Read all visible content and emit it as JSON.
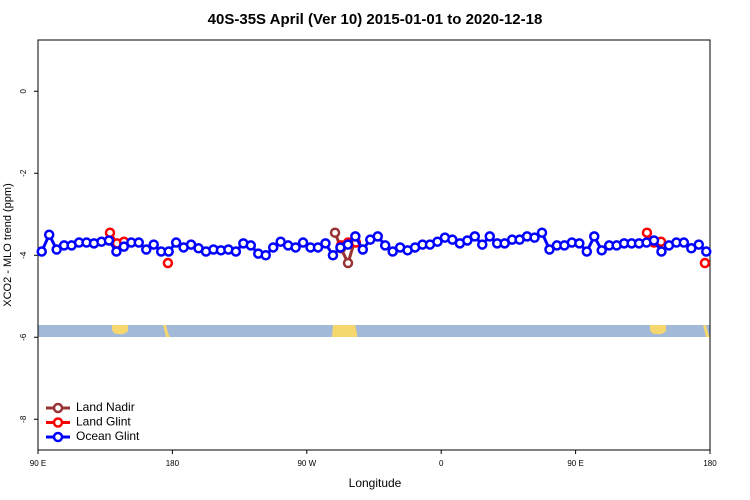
{
  "chart_data": {
    "type": "line",
    "title": "40S-35S April (Ver 10)   2015-01-01 to 2020-12-18",
    "x_label": "Longitude",
    "y_label": "XCO2 - MLO trend (ppm)",
    "xlim": [
      90,
      540
    ],
    "ylim": [
      -8.75,
      1.25
    ],
    "xticks": [
      {
        "value": 90,
        "label": "90 E"
      },
      {
        "value": 180,
        "label": "180"
      },
      {
        "value": 270,
        "label": "90 W"
      },
      {
        "value": 360,
        "label": "0"
      },
      {
        "value": 450,
        "label": "90 E"
      },
      {
        "value": 540,
        "label": "180"
      }
    ],
    "yticks": [
      -8,
      -6,
      -4,
      -2,
      0
    ],
    "legend": "bottom-left",
    "series": [
      {
        "name": "Land Nadir",
        "color": "#993333",
        "x": [
          288.9,
          292.9,
          297.6,
          302.3
        ],
        "values": [
          -3.45,
          -3.83,
          -4.19,
          -3.62
        ]
      },
      {
        "name": "Land Glint",
        "color": "#ff0000",
        "x": [
          138.2,
          142.9,
          147.6,
          162.0,
          177.0,
          250.0,
          292.9,
          297.6,
          302.9,
          400.0,
          497.8,
          502.5,
          507.2,
          520.0,
          536.6
        ],
        "values": [
          -3.45,
          -3.71,
          -3.67,
          null,
          -4.19,
          null,
          -3.76,
          -3.69,
          -3.69,
          null,
          -3.45,
          -3.69,
          -3.67,
          null,
          -4.19
        ]
      },
      {
        "name": "Ocean Glint",
        "color": "#0000ff",
        "x": [
          92.5,
          97.5,
          102.5,
          107.5,
          112.5,
          117.5,
          122.5,
          127.5,
          132.5,
          137.5,
          142.5,
          147.5,
          152.5,
          157.5,
          162.5,
          167.5,
          172.5,
          177.5,
          182.5,
          187.5,
          192.5,
          197.5,
          202.5,
          207.5,
          212.5,
          217.5,
          222.5,
          227.5,
          232.5,
          237.5,
          242.5,
          247.5,
          252.5,
          257.5,
          262.5,
          267.5,
          272.5,
          277.5,
          282.5,
          287.5,
          292.5,
          297.5,
          302.5,
          307.5,
          312.5,
          317.5,
          322.5,
          327.5,
          332.5,
          337.5,
          342.5,
          347.5,
          352.5,
          357.5,
          362.5,
          367.5,
          372.5,
          377.5,
          382.5,
          387.5,
          392.5,
          397.5,
          402.5,
          407.5,
          412.5,
          417.5,
          422.5,
          427.5,
          432.5,
          437.5,
          442.5,
          447.5,
          452.5,
          457.5,
          462.5,
          467.5,
          472.5,
          477.5,
          482.5,
          487.5,
          492.5,
          497.5,
          502.5,
          507.5,
          512.5,
          517.5,
          522.5,
          527.5,
          532.5,
          537.5
        ],
        "values": [
          -3.91,
          -3.5,
          -3.86,
          -3.76,
          -3.76,
          -3.69,
          -3.69,
          -3.71,
          -3.67,
          -3.64,
          -3.91,
          -3.79,
          -3.69,
          -3.69,
          -3.86,
          -3.74,
          -3.91,
          -3.91,
          -3.69,
          -3.81,
          -3.74,
          -3.83,
          -3.91,
          -3.86,
          -3.88,
          -3.86,
          -3.91,
          -3.71,
          -3.76,
          -3.96,
          -4.0,
          -3.81,
          -3.67,
          -3.76,
          -3.81,
          -3.69,
          -3.81,
          -3.81,
          -3.71,
          -4.0,
          -3.81,
          -3.74,
          -3.54,
          -3.86,
          -3.62,
          -3.54,
          -3.76,
          -3.91,
          -3.81,
          -3.88,
          -3.81,
          -3.74,
          -3.74,
          -3.67,
          -3.57,
          -3.62,
          -3.71,
          -3.64,
          -3.54,
          -3.74,
          -3.54,
          -3.71,
          -3.71,
          -3.62,
          -3.62,
          -3.54,
          -3.57,
          -3.45,
          -3.86,
          -3.76,
          -3.76,
          -3.69,
          -3.71,
          -3.91,
          -3.54,
          -3.88,
          -3.76,
          -3.76,
          -3.71,
          -3.71,
          -3.71,
          -3.69,
          -3.64,
          -3.91,
          -3.76,
          -3.69,
          -3.69,
          -3.83,
          -3.74,
          -3.91
        ]
      }
    ]
  }
}
